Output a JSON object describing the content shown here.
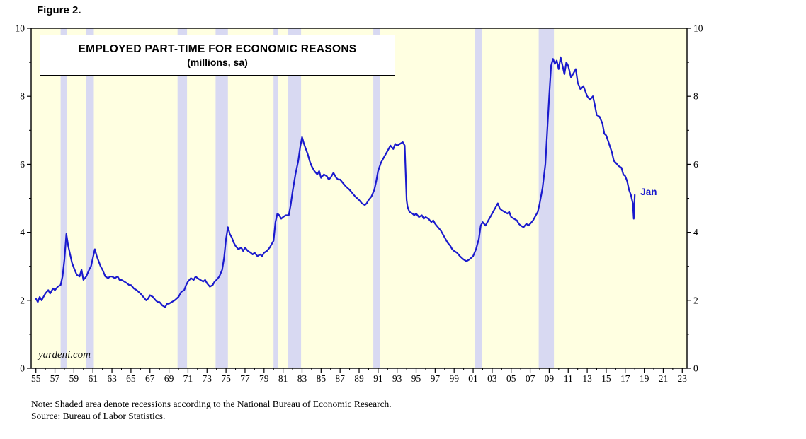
{
  "figure_label": "Figure 2.",
  "notes": {
    "note": "Note: Shaded area denote recessions according to the National Bureau of Economic Research.",
    "source": "Source: Bureau of Labor Statistics."
  },
  "chart_data": {
    "type": "line",
    "title": "EMPLOYED PART-TIME FOR ECONOMIC REASONS",
    "subtitle": "(millions, sa)",
    "watermark": "yardeni.com",
    "annotation": {
      "text": "Jan",
      "x": 2018.3,
      "y": 5.15
    },
    "xlim": [
      1954.5,
      2023.5
    ],
    "ylim": [
      0,
      10
    ],
    "plot_bg": "#FFFFE1",
    "recession_color": "#D8D9F2",
    "line_color": "#1A1ACD",
    "y_ticks": [
      [
        0,
        "0"
      ],
      [
        2,
        "2"
      ],
      [
        4,
        "4"
      ],
      [
        6,
        "6"
      ],
      [
        8,
        "8"
      ],
      [
        10,
        "10"
      ]
    ],
    "x_ticks": [
      [
        1955,
        "55"
      ],
      [
        1957,
        "57"
      ],
      [
        1959,
        "59"
      ],
      [
        1961,
        "61"
      ],
      [
        1963,
        "63"
      ],
      [
        1965,
        "65"
      ],
      [
        1967,
        "67"
      ],
      [
        1969,
        "69"
      ],
      [
        1971,
        "71"
      ],
      [
        1973,
        "73"
      ],
      [
        1975,
        "75"
      ],
      [
        1977,
        "77"
      ],
      [
        1979,
        "79"
      ],
      [
        1981,
        "81"
      ],
      [
        1983,
        "83"
      ],
      [
        1985,
        "85"
      ],
      [
        1987,
        "87"
      ],
      [
        1989,
        "89"
      ],
      [
        1991,
        "91"
      ],
      [
        1993,
        "93"
      ],
      [
        1995,
        "95"
      ],
      [
        1997,
        "97"
      ],
      [
        1999,
        "99"
      ],
      [
        2001,
        "01"
      ],
      [
        2003,
        "03"
      ],
      [
        2005,
        "05"
      ],
      [
        2007,
        "07"
      ],
      [
        2009,
        "09"
      ],
      [
        2011,
        "11"
      ],
      [
        2013,
        "13"
      ],
      [
        2015,
        "15"
      ],
      [
        2017,
        "17"
      ],
      [
        2019,
        "19"
      ],
      [
        2021,
        "21"
      ],
      [
        2023,
        "23"
      ]
    ],
    "recessions": [
      [
        1957.6,
        1958.3
      ],
      [
        1960.3,
        1961.1
      ],
      [
        1969.9,
        1970.9
      ],
      [
        1973.9,
        1975.2
      ],
      [
        1980.0,
        1980.5
      ],
      [
        1981.5,
        1982.9
      ],
      [
        1990.5,
        1991.2
      ],
      [
        2001.2,
        2001.9
      ],
      [
        2007.9,
        2009.5
      ]
    ],
    "series": [
      {
        "name": "EMPLOYED PART-TIME FOR ECONOMIC REASONS",
        "points": [
          [
            1955.0,
            2.05
          ],
          [
            1955.2,
            1.95
          ],
          [
            1955.4,
            2.1
          ],
          [
            1955.6,
            2.0
          ],
          [
            1955.8,
            2.1
          ],
          [
            1956.0,
            2.2
          ],
          [
            1956.3,
            2.3
          ],
          [
            1956.5,
            2.2
          ],
          [
            1956.8,
            2.35
          ],
          [
            1957.0,
            2.3
          ],
          [
            1957.3,
            2.4
          ],
          [
            1957.6,
            2.45
          ],
          [
            1957.8,
            2.7
          ],
          [
            1958.0,
            3.2
          ],
          [
            1958.2,
            3.95
          ],
          [
            1958.4,
            3.6
          ],
          [
            1958.6,
            3.35
          ],
          [
            1958.8,
            3.1
          ],
          [
            1959.0,
            2.95
          ],
          [
            1959.3,
            2.75
          ],
          [
            1959.6,
            2.7
          ],
          [
            1959.8,
            2.9
          ],
          [
            1960.0,
            2.6
          ],
          [
            1960.3,
            2.7
          ],
          [
            1960.6,
            2.9
          ],
          [
            1960.8,
            3.0
          ],
          [
            1961.0,
            3.25
          ],
          [
            1961.2,
            3.5
          ],
          [
            1961.4,
            3.3
          ],
          [
            1961.6,
            3.15
          ],
          [
            1961.8,
            3.0
          ],
          [
            1962.0,
            2.9
          ],
          [
            1962.3,
            2.7
          ],
          [
            1962.6,
            2.65
          ],
          [
            1962.8,
            2.7
          ],
          [
            1963.0,
            2.7
          ],
          [
            1963.3,
            2.65
          ],
          [
            1963.6,
            2.7
          ],
          [
            1963.8,
            2.6
          ],
          [
            1964.0,
            2.6
          ],
          [
            1964.3,
            2.55
          ],
          [
            1964.6,
            2.5
          ],
          [
            1964.8,
            2.45
          ],
          [
            1965.0,
            2.45
          ],
          [
            1965.3,
            2.35
          ],
          [
            1965.6,
            2.3
          ],
          [
            1965.8,
            2.25
          ],
          [
            1966.0,
            2.2
          ],
          [
            1966.3,
            2.1
          ],
          [
            1966.6,
            2.0
          ],
          [
            1966.8,
            2.05
          ],
          [
            1967.0,
            2.15
          ],
          [
            1967.3,
            2.1
          ],
          [
            1967.6,
            2.0
          ],
          [
            1967.8,
            1.95
          ],
          [
            1968.0,
            1.95
          ],
          [
            1968.3,
            1.85
          ],
          [
            1968.6,
            1.8
          ],
          [
            1968.8,
            1.9
          ],
          [
            1969.0,
            1.9
          ],
          [
            1969.3,
            1.95
          ],
          [
            1969.6,
            2.0
          ],
          [
            1969.8,
            2.05
          ],
          [
            1970.0,
            2.1
          ],
          [
            1970.3,
            2.25
          ],
          [
            1970.6,
            2.3
          ],
          [
            1970.8,
            2.45
          ],
          [
            1971.0,
            2.55
          ],
          [
            1971.3,
            2.65
          ],
          [
            1971.6,
            2.6
          ],
          [
            1971.8,
            2.7
          ],
          [
            1972.0,
            2.65
          ],
          [
            1972.3,
            2.6
          ],
          [
            1972.6,
            2.55
          ],
          [
            1972.8,
            2.6
          ],
          [
            1973.0,
            2.5
          ],
          [
            1973.3,
            2.4
          ],
          [
            1973.6,
            2.45
          ],
          [
            1973.8,
            2.55
          ],
          [
            1974.0,
            2.6
          ],
          [
            1974.3,
            2.7
          ],
          [
            1974.6,
            2.9
          ],
          [
            1974.8,
            3.25
          ],
          [
            1975.0,
            3.8
          ],
          [
            1975.2,
            4.15
          ],
          [
            1975.4,
            3.95
          ],
          [
            1975.6,
            3.85
          ],
          [
            1975.8,
            3.7
          ],
          [
            1976.0,
            3.6
          ],
          [
            1976.3,
            3.5
          ],
          [
            1976.6,
            3.55
          ],
          [
            1976.8,
            3.45
          ],
          [
            1977.0,
            3.55
          ],
          [
            1977.3,
            3.45
          ],
          [
            1977.6,
            3.4
          ],
          [
            1977.8,
            3.35
          ],
          [
            1978.0,
            3.4
          ],
          [
            1978.3,
            3.3
          ],
          [
            1978.6,
            3.35
          ],
          [
            1978.8,
            3.3
          ],
          [
            1979.0,
            3.4
          ],
          [
            1979.3,
            3.45
          ],
          [
            1979.6,
            3.55
          ],
          [
            1979.8,
            3.65
          ],
          [
            1980.0,
            3.75
          ],
          [
            1980.2,
            4.3
          ],
          [
            1980.4,
            4.55
          ],
          [
            1980.6,
            4.5
          ],
          [
            1980.8,
            4.4
          ],
          [
            1981.0,
            4.45
          ],
          [
            1981.3,
            4.5
          ],
          [
            1981.6,
            4.5
          ],
          [
            1981.8,
            4.8
          ],
          [
            1982.0,
            5.2
          ],
          [
            1982.3,
            5.7
          ],
          [
            1982.6,
            6.1
          ],
          [
            1982.8,
            6.5
          ],
          [
            1983.0,
            6.8
          ],
          [
            1983.2,
            6.6
          ],
          [
            1983.4,
            6.45
          ],
          [
            1983.6,
            6.3
          ],
          [
            1983.8,
            6.1
          ],
          [
            1984.0,
            5.95
          ],
          [
            1984.3,
            5.8
          ],
          [
            1984.6,
            5.7
          ],
          [
            1984.8,
            5.8
          ],
          [
            1985.0,
            5.6
          ],
          [
            1985.3,
            5.7
          ],
          [
            1985.6,
            5.65
          ],
          [
            1985.8,
            5.55
          ],
          [
            1986.0,
            5.6
          ],
          [
            1986.3,
            5.75
          ],
          [
            1986.6,
            5.6
          ],
          [
            1986.8,
            5.55
          ],
          [
            1987.0,
            5.55
          ],
          [
            1987.3,
            5.45
          ],
          [
            1987.6,
            5.35
          ],
          [
            1987.8,
            5.3
          ],
          [
            1988.0,
            5.25
          ],
          [
            1988.3,
            5.15
          ],
          [
            1988.6,
            5.05
          ],
          [
            1988.8,
            5.0
          ],
          [
            1989.0,
            4.95
          ],
          [
            1989.3,
            4.85
          ],
          [
            1989.6,
            4.8
          ],
          [
            1989.8,
            4.85
          ],
          [
            1990.0,
            4.95
          ],
          [
            1990.3,
            5.05
          ],
          [
            1990.6,
            5.25
          ],
          [
            1990.8,
            5.5
          ],
          [
            1991.0,
            5.8
          ],
          [
            1991.3,
            6.05
          ],
          [
            1991.6,
            6.2
          ],
          [
            1991.8,
            6.3
          ],
          [
            1992.0,
            6.4
          ],
          [
            1992.3,
            6.55
          ],
          [
            1992.6,
            6.45
          ],
          [
            1992.8,
            6.6
          ],
          [
            1993.0,
            6.55
          ],
          [
            1993.3,
            6.6
          ],
          [
            1993.6,
            6.65
          ],
          [
            1993.8,
            6.55
          ],
          [
            1994.0,
            4.95
          ],
          [
            1994.1,
            4.75
          ],
          [
            1994.3,
            4.6
          ],
          [
            1994.6,
            4.55
          ],
          [
            1994.8,
            4.5
          ],
          [
            1995.0,
            4.55
          ],
          [
            1995.3,
            4.45
          ],
          [
            1995.6,
            4.5
          ],
          [
            1995.8,
            4.4
          ],
          [
            1996.0,
            4.45
          ],
          [
            1996.3,
            4.4
          ],
          [
            1996.6,
            4.3
          ],
          [
            1996.8,
            4.35
          ],
          [
            1997.0,
            4.25
          ],
          [
            1997.3,
            4.15
          ],
          [
            1997.6,
            4.05
          ],
          [
            1997.8,
            3.95
          ],
          [
            1998.0,
            3.85
          ],
          [
            1998.3,
            3.7
          ],
          [
            1998.6,
            3.6
          ],
          [
            1998.8,
            3.5
          ],
          [
            1999.0,
            3.45
          ],
          [
            1999.3,
            3.4
          ],
          [
            1999.6,
            3.3
          ],
          [
            1999.8,
            3.25
          ],
          [
            2000.0,
            3.2
          ],
          [
            2000.3,
            3.15
          ],
          [
            2000.6,
            3.2
          ],
          [
            2000.8,
            3.25
          ],
          [
            2001.0,
            3.3
          ],
          [
            2001.3,
            3.5
          ],
          [
            2001.6,
            3.8
          ],
          [
            2001.8,
            4.2
          ],
          [
            2002.0,
            4.3
          ],
          [
            2002.3,
            4.2
          ],
          [
            2002.6,
            4.35
          ],
          [
            2002.8,
            4.45
          ],
          [
            2003.0,
            4.55
          ],
          [
            2003.3,
            4.7
          ],
          [
            2003.6,
            4.85
          ],
          [
            2003.8,
            4.7
          ],
          [
            2004.0,
            4.65
          ],
          [
            2004.3,
            4.6
          ],
          [
            2004.6,
            4.55
          ],
          [
            2004.8,
            4.6
          ],
          [
            2005.0,
            4.45
          ],
          [
            2005.3,
            4.4
          ],
          [
            2005.6,
            4.35
          ],
          [
            2005.8,
            4.25
          ],
          [
            2006.0,
            4.2
          ],
          [
            2006.3,
            4.15
          ],
          [
            2006.6,
            4.25
          ],
          [
            2006.8,
            4.2
          ],
          [
            2007.0,
            4.25
          ],
          [
            2007.3,
            4.35
          ],
          [
            2007.6,
            4.5
          ],
          [
            2007.8,
            4.6
          ],
          [
            2008.0,
            4.85
          ],
          [
            2008.3,
            5.3
          ],
          [
            2008.6,
            6.0
          ],
          [
            2008.8,
            7.0
          ],
          [
            2009.0,
            8.0
          ],
          [
            2009.2,
            8.9
          ],
          [
            2009.4,
            9.1
          ],
          [
            2009.6,
            8.95
          ],
          [
            2009.8,
            9.05
          ],
          [
            2010.0,
            8.8
          ],
          [
            2010.2,
            9.15
          ],
          [
            2010.4,
            8.9
          ],
          [
            2010.6,
            8.65
          ],
          [
            2010.8,
            9.0
          ],
          [
            2011.0,
            8.9
          ],
          [
            2011.3,
            8.55
          ],
          [
            2011.6,
            8.7
          ],
          [
            2011.8,
            8.8
          ],
          [
            2012.0,
            8.4
          ],
          [
            2012.3,
            8.2
          ],
          [
            2012.6,
            8.3
          ],
          [
            2012.8,
            8.15
          ],
          [
            2013.0,
            8.0
          ],
          [
            2013.3,
            7.9
          ],
          [
            2013.6,
            8.0
          ],
          [
            2013.8,
            7.75
          ],
          [
            2014.0,
            7.45
          ],
          [
            2014.3,
            7.4
          ],
          [
            2014.6,
            7.2
          ],
          [
            2014.8,
            6.9
          ],
          [
            2015.0,
            6.85
          ],
          [
            2015.3,
            6.6
          ],
          [
            2015.6,
            6.35
          ],
          [
            2015.8,
            6.1
          ],
          [
            2016.0,
            6.05
          ],
          [
            2016.3,
            5.95
          ],
          [
            2016.6,
            5.9
          ],
          [
            2016.8,
            5.7
          ],
          [
            2017.0,
            5.65
          ],
          [
            2017.2,
            5.5
          ],
          [
            2017.4,
            5.25
          ],
          [
            2017.6,
            5.1
          ],
          [
            2017.8,
            4.85
          ],
          [
            2017.9,
            4.4
          ],
          [
            2018.0,
            5.1
          ]
        ]
      }
    ]
  }
}
